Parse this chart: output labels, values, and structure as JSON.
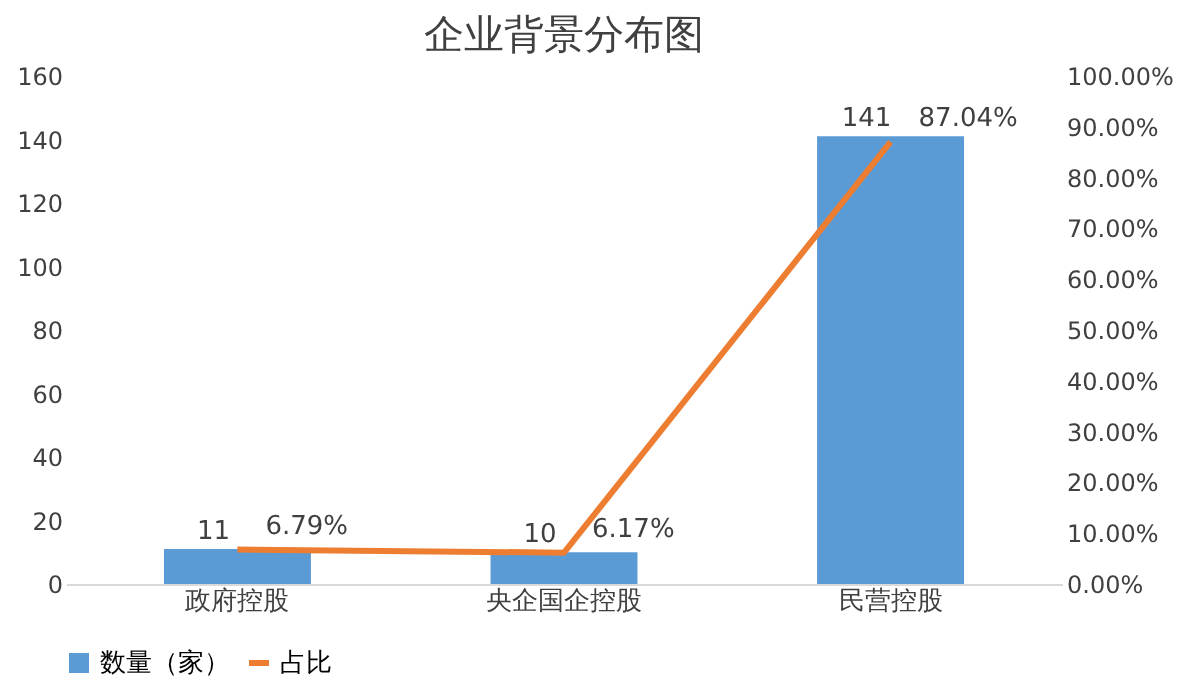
{
  "chart_data": {
    "type": "bar",
    "title": "企业背景分布图",
    "categories": [
      "政府控股",
      "央企国企控股",
      "民营控股"
    ],
    "series": [
      {
        "name": "数量（家）",
        "color": "#5b9bd5",
        "values": [
          11,
          10,
          141
        ],
        "value_labels": [
          "11",
          "10",
          "141"
        ]
      },
      {
        "name": "占比",
        "type": "line",
        "axis": "y2",
        "color": "#ed7d31",
        "values": [
          6.79,
          6.17,
          87.04
        ],
        "value_labels": [
          "6.79%",
          "6.17%",
          "87.04%"
        ]
      }
    ],
    "ylim": [
      0,
      160
    ],
    "yticks": [
      0,
      20,
      40,
      60,
      80,
      100,
      120,
      140,
      160
    ],
    "y2lim": [
      0,
      100
    ],
    "y2ticks": [
      {
        "value": 0,
        "label": "0.00%"
      },
      {
        "value": 10,
        "label": "10.00%"
      },
      {
        "value": 20,
        "label": "20.00%"
      },
      {
        "value": 30,
        "label": "30.00%"
      },
      {
        "value": 40,
        "label": "40.00%"
      },
      {
        "value": 50,
        "label": "50.00%"
      },
      {
        "value": 60,
        "label": "60.00%"
      },
      {
        "value": 70,
        "label": "70.00%"
      },
      {
        "value": 80,
        "label": "80.00%"
      },
      {
        "value": 90,
        "label": "90.00%"
      },
      {
        "value": 100,
        "label": "100.00%"
      }
    ],
    "grid": false,
    "legend": "bottom"
  }
}
